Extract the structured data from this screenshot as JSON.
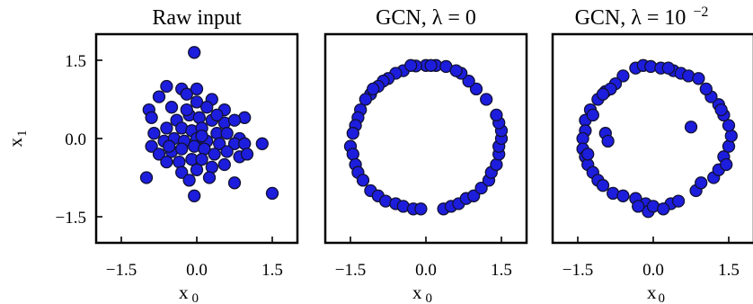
{
  "chart_data": [
    {
      "type": "scatter",
      "title": "Raw input",
      "xlabel": "x",
      "xlabel_sub": "0",
      "ylabel": "x",
      "ylabel_sub": "1",
      "xlim": [
        -2.0,
        2.0
      ],
      "ylim": [
        -2.0,
        2.0
      ],
      "xticks": [
        -1.5,
        0.0,
        1.5
      ],
      "yticks": [
        -1.5,
        0.0,
        1.5
      ],
      "xtick_labels": [
        "−1.5",
        "0.0",
        "1.5"
      ],
      "ytick_labels": [
        "−1.5",
        "0.0",
        "1.5"
      ],
      "points": [
        [
          -0.05,
          1.65
        ],
        [
          -0.6,
          1.0
        ],
        [
          -0.3,
          0.95
        ],
        [
          -0.2,
          0.85
        ],
        [
          0.0,
          0.95
        ],
        [
          0.3,
          0.75
        ],
        [
          -0.75,
          0.8
        ],
        [
          -0.95,
          0.55
        ],
        [
          -0.9,
          0.4
        ],
        [
          -0.5,
          0.6
        ],
        [
          0.0,
          0.7
        ],
        [
          0.2,
          0.6
        ],
        [
          0.55,
          0.55
        ],
        [
          0.95,
          0.4
        ],
        [
          -0.4,
          0.35
        ],
        [
          -0.15,
          0.45
        ],
        [
          0.05,
          0.4
        ],
        [
          0.3,
          0.35
        ],
        [
          0.55,
          0.3
        ],
        [
          0.75,
          0.35
        ],
        [
          -0.6,
          0.2
        ],
        [
          -0.3,
          0.2
        ],
        [
          -0.1,
          0.15
        ],
        [
          0.1,
          0.2
        ],
        [
          0.4,
          0.1
        ],
        [
          0.6,
          0.1
        ],
        [
          0.85,
          0.0
        ],
        [
          -0.85,
          0.1
        ],
        [
          -0.9,
          -0.15
        ],
        [
          -0.65,
          -0.05
        ],
        [
          -0.45,
          0.0
        ],
        [
          -0.25,
          -0.05
        ],
        [
          0.0,
          0.0
        ],
        [
          0.2,
          -0.05
        ],
        [
          0.45,
          -0.1
        ],
        [
          0.75,
          -0.1
        ],
        [
          0.95,
          -0.1
        ],
        [
          1.3,
          -0.1
        ],
        [
          -0.75,
          -0.3
        ],
        [
          -0.5,
          -0.25
        ],
        [
          -0.3,
          -0.2
        ],
        [
          -0.05,
          -0.15
        ],
        [
          0.15,
          -0.2
        ],
        [
          0.35,
          -0.3
        ],
        [
          0.6,
          -0.25
        ],
        [
          0.85,
          -0.35
        ],
        [
          1.0,
          -0.3
        ],
        [
          -0.6,
          -0.45
        ],
        [
          -0.35,
          -0.45
        ],
        [
          -0.1,
          -0.4
        ],
        [
          0.1,
          -0.4
        ],
        [
          0.3,
          -0.55
        ],
        [
          0.55,
          -0.5
        ],
        [
          -0.3,
          -0.65
        ],
        [
          0.0,
          -0.6
        ],
        [
          0.25,
          -0.75
        ],
        [
          -1.0,
          -0.75
        ],
        [
          -0.15,
          -0.8
        ],
        [
          0.75,
          -0.85
        ],
        [
          -0.05,
          -1.1
        ],
        [
          1.5,
          -1.05
        ],
        [
          0.1,
          0.05
        ],
        [
          -0.2,
          0.55
        ],
        [
          0.4,
          0.45
        ],
        [
          -0.55,
          -0.15
        ]
      ]
    },
    {
      "type": "scatter",
      "title": "GCN, λ = 0",
      "xlabel": "x",
      "xlabel_sub": "0",
      "xlim": [
        -2.0,
        2.0
      ],
      "ylim": [
        -2.0,
        2.0
      ],
      "xticks": [
        -1.5,
        0.0,
        1.5
      ],
      "xtick_labels": [
        "−1.5",
        "0.0",
        "1.5"
      ],
      "points": [
        [
          0.0,
          1.4
        ],
        [
          0.2,
          1.4
        ],
        [
          0.4,
          1.38
        ],
        [
          -0.2,
          1.39
        ],
        [
          -0.45,
          1.3
        ],
        [
          -0.6,
          1.25
        ],
        [
          -0.75,
          1.15
        ],
        [
          -0.85,
          1.1
        ],
        [
          -0.95,
          1.0
        ],
        [
          -1.1,
          0.85
        ],
        [
          -1.2,
          0.75
        ],
        [
          -1.3,
          0.55
        ],
        [
          -1.35,
          0.4
        ],
        [
          -1.4,
          0.25
        ],
        [
          -1.45,
          0.1
        ],
        [
          -1.5,
          -0.15
        ],
        [
          -1.45,
          -0.3
        ],
        [
          -1.4,
          -0.5
        ],
        [
          -1.35,
          -0.65
        ],
        [
          -1.25,
          -0.8
        ],
        [
          -1.1,
          -1.0
        ],
        [
          -0.95,
          -1.1
        ],
        [
          -0.8,
          -1.2
        ],
        [
          -0.6,
          -1.25
        ],
        [
          -0.45,
          -1.3
        ],
        [
          -0.25,
          -1.35
        ],
        [
          -0.1,
          -1.35
        ],
        [
          0.35,
          -1.35
        ],
        [
          0.5,
          -1.3
        ],
        [
          0.65,
          -1.25
        ],
        [
          0.8,
          -1.15
        ],
        [
          0.95,
          -1.1
        ],
        [
          1.1,
          -0.95
        ],
        [
          1.25,
          -0.8
        ],
        [
          1.3,
          -0.65
        ],
        [
          1.4,
          -0.5
        ],
        [
          1.45,
          -0.3
        ],
        [
          1.45,
          -0.15
        ],
        [
          1.5,
          0.0
        ],
        [
          1.5,
          0.15
        ],
        [
          1.45,
          0.3
        ],
        [
          1.4,
          0.45
        ],
        [
          1.2,
          0.75
        ],
        [
          1.0,
          0.95
        ],
        [
          0.85,
          1.1
        ],
        [
          0.7,
          1.25
        ],
        [
          0.6,
          1.3
        ],
        [
          -0.3,
          1.4
        ],
        [
          0.1,
          1.4
        ],
        [
          -1.05,
          0.95
        ]
      ]
    },
    {
      "type": "scatter",
      "title": "GCN, λ = 10",
      "title_exponent": "−2",
      "xlabel": "x",
      "xlabel_sub": "0",
      "xlim": [
        -2.0,
        2.0
      ],
      "ylim": [
        -2.0,
        2.0
      ],
      "xticks": [
        -1.5,
        0.0,
        1.5
      ],
      "xtick_labels": [
        "−1.5",
        "0.0",
        "1.5"
      ],
      "points": [
        [
          -0.35,
          1.35
        ],
        [
          -0.2,
          1.4
        ],
        [
          -0.05,
          1.38
        ],
        [
          0.15,
          1.35
        ],
        [
          0.4,
          1.3
        ],
        [
          0.55,
          1.25
        ],
        [
          0.7,
          1.2
        ],
        [
          0.9,
          1.15
        ],
        [
          -0.6,
          1.2
        ],
        [
          -0.75,
          1.05
        ],
        [
          -0.95,
          0.9
        ],
        [
          -1.1,
          0.75
        ],
        [
          -1.25,
          0.55
        ],
        [
          -1.35,
          0.35
        ],
        [
          -1.35,
          0.15
        ],
        [
          -1.4,
          0.0
        ],
        [
          -1.4,
          -0.2
        ],
        [
          -1.35,
          -0.35
        ],
        [
          -1.3,
          -0.5
        ],
        [
          -1.2,
          -0.65
        ],
        [
          -1.1,
          -0.8
        ],
        [
          -1.0,
          -0.9
        ],
        [
          -0.8,
          -1.05
        ],
        [
          -0.6,
          -1.1
        ],
        [
          -0.35,
          -1.15
        ],
        [
          -0.15,
          -1.25
        ],
        [
          -0.1,
          -1.4
        ],
        [
          0.0,
          -1.3
        ],
        [
          0.35,
          -1.25
        ],
        [
          0.5,
          -1.2
        ],
        [
          0.85,
          -1.0
        ],
        [
          0.95,
          -0.85
        ],
        [
          1.2,
          -0.75
        ],
        [
          1.3,
          -0.6
        ],
        [
          1.4,
          -0.35
        ],
        [
          1.5,
          -0.15
        ],
        [
          1.55,
          0.05
        ],
        [
          1.5,
          0.25
        ],
        [
          1.4,
          0.45
        ],
        [
          1.3,
          0.65
        ],
        [
          1.15,
          0.8
        ],
        [
          1.05,
          0.95
        ],
        [
          -0.85,
          0.95
        ],
        [
          -1.2,
          0.45
        ],
        [
          -1.3,
          -0.3
        ],
        [
          0.2,
          -1.35
        ],
        [
          1.35,
          0.55
        ],
        [
          0.75,
          0.22
        ],
        [
          -0.95,
          0.1
        ],
        [
          -0.9,
          -0.05
        ],
        [
          -0.3,
          -1.3
        ],
        [
          0.3,
          1.35
        ],
        [
          -1.0,
          0.85
        ],
        [
          1.45,
          -0.5
        ]
      ]
    }
  ]
}
